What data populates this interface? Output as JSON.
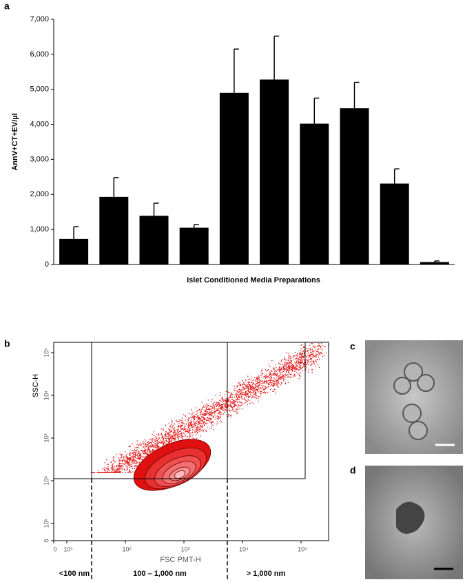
{
  "chart_data": [
    {
      "type": "bar",
      "label": "a",
      "ylabel": "AnnV+CT+EV/µl",
      "xlabel": "Islet Conditioned Media Preparations",
      "categories": [
        null,
        null,
        null,
        null,
        null,
        null,
        null,
        null,
        null,
        null
      ],
      "values": [
        730,
        1930,
        1390,
        1050,
        4900,
        5280,
        4020,
        4460,
        2310,
        70
      ],
      "errors": [
        350,
        550,
        360,
        90,
        1250,
        1240,
        730,
        740,
        420,
        30
      ],
      "color": "#000000",
      "ylim": [
        0,
        7000
      ],
      "yticks": [
        0,
        {
          "value": 1000,
          "label": "1,000"
        },
        {
          "value": 2000,
          "label": "2,000"
        },
        {
          "value": 3000,
          "label": "3,000"
        },
        {
          "value": 4000,
          "label": "4,000"
        },
        {
          "value": 5000,
          "label": "5,000"
        },
        {
          "value": 6000,
          "label": "6,000"
        },
        {
          "value": 7000,
          "label": "7,000"
        }
      ]
    },
    {
      "type": "density",
      "label": "b",
      "xlabel": "FSC PMT-H",
      "ylabel": "SSC-H",
      "color": "#e01010",
      "log_scale": true,
      "xlim": [
        0,
        250000
      ],
      "xticks": [
        0,
        {
          "value": 10,
          "label": "10¹"
        },
        {
          "value": 100,
          "label": "10²"
        },
        {
          "value": 1000,
          "label": "10³"
        },
        {
          "value": 10000,
          "label": "10⁴"
        },
        {
          "value": 100000,
          "label": "10⁵"
        }
      ],
      "ylim": [
        0,
        250000
      ],
      "yticks": [
        0,
        {
          "value": 10,
          "label": "10¹"
        },
        {
          "value": 100,
          "label": "10²"
        },
        {
          "value": 1000,
          "label": "10³"
        },
        {
          "value": 10000,
          "label": "10⁴"
        },
        {
          "value": 100000,
          "label": "10⁵"
        }
      ],
      "regions": [
        "<100 nm",
        "100 – 1,000 nm",
        "> 1,000 nm"
      ]
    }
  ],
  "images": [
    {
      "label": "c"
    },
    {
      "label": "d"
    }
  ]
}
